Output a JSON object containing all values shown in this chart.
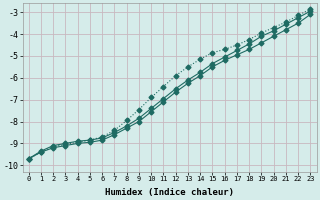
{
  "xlabel": "Humidex (Indice chaleur)",
  "ylabel": "",
  "xlim": [
    -0.5,
    23.5
  ],
  "ylim": [
    -10.3,
    -2.6
  ],
  "yticks": [
    -10,
    -9,
    -8,
    -7,
    -6,
    -5,
    -4,
    -3
  ],
  "xticks": [
    0,
    1,
    2,
    3,
    4,
    5,
    6,
    7,
    8,
    9,
    10,
    11,
    12,
    13,
    14,
    15,
    16,
    17,
    18,
    19,
    20,
    21,
    22,
    23
  ],
  "bg_color": "#d5ecea",
  "grid_color": "#c8b8c0",
  "line_color": "#1e6b63",
  "line1_x": [
    0,
    1,
    2,
    3,
    4,
    5,
    6,
    7,
    8,
    9,
    10,
    11,
    12,
    13,
    14,
    15,
    16,
    17,
    18,
    19,
    20,
    21,
    22,
    23
  ],
  "line1_y": [
    -9.7,
    -9.4,
    -9.2,
    -9.1,
    -9.0,
    -8.95,
    -8.85,
    -8.6,
    -8.3,
    -8.0,
    -7.55,
    -7.1,
    -6.65,
    -6.25,
    -5.9,
    -5.5,
    -5.2,
    -4.95,
    -4.7,
    -4.4,
    -4.1,
    -3.8,
    -3.5,
    -3.1
  ],
  "line2_x": [
    0,
    1,
    2,
    3,
    4,
    5,
    6,
    7,
    8,
    9,
    10,
    11,
    12,
    13,
    14,
    15,
    16,
    17,
    18,
    19,
    20,
    21,
    22,
    23
  ],
  "line2_y": [
    -9.7,
    -9.4,
    -9.15,
    -9.05,
    -8.95,
    -8.85,
    -8.7,
    -8.4,
    -7.95,
    -7.45,
    -6.9,
    -6.4,
    -5.9,
    -5.5,
    -5.15,
    -4.85,
    -4.7,
    -4.5,
    -4.25,
    -3.95,
    -3.7,
    -3.45,
    -3.15,
    -2.85
  ],
  "line3_x": [
    0,
    1,
    2,
    3,
    4,
    5,
    6,
    7,
    8,
    9,
    10,
    11,
    12,
    13,
    14,
    15,
    16,
    17,
    18,
    19,
    20,
    21,
    22,
    23
  ],
  "line3_y": [
    -9.7,
    -9.35,
    -9.1,
    -9.0,
    -8.9,
    -8.85,
    -8.75,
    -8.5,
    -8.2,
    -7.85,
    -7.4,
    -6.95,
    -6.5,
    -6.1,
    -5.75,
    -5.35,
    -5.05,
    -4.75,
    -4.45,
    -4.1,
    -3.85,
    -3.55,
    -3.25,
    -2.95
  ]
}
